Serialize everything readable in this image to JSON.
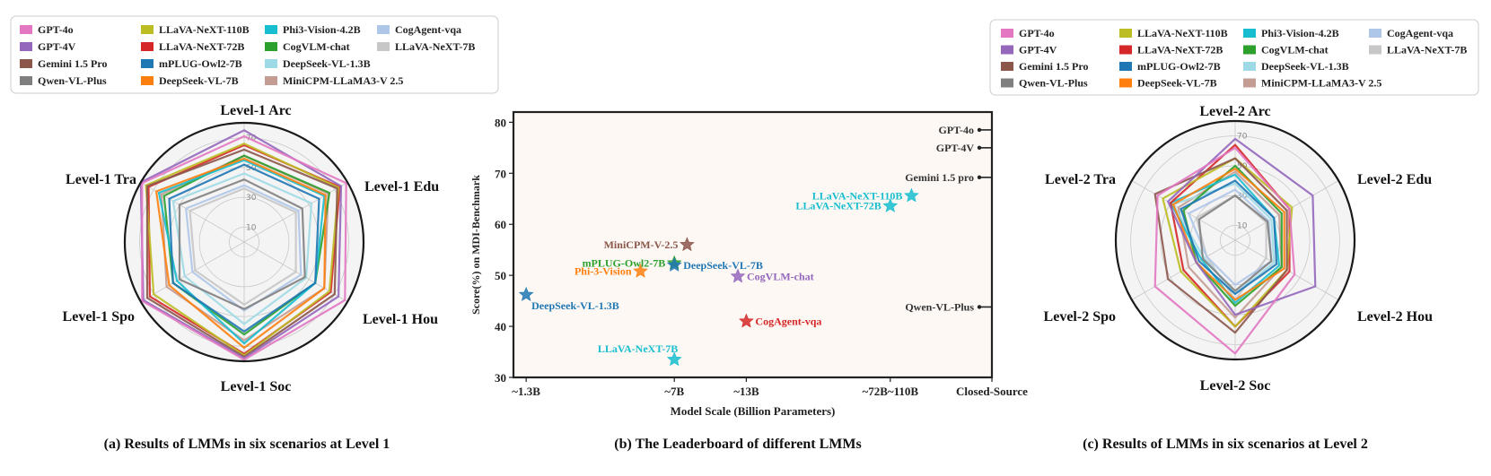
{
  "colors": {
    "GPT-4o": "#e377c2",
    "GPT-4V": "#9467bd",
    "Gemini 1.5 Pro": "#8c564b",
    "Qwen-VL-Plus": "#7f7f7f",
    "LLaVA-NeXT-110B": "#bcbd22",
    "LLaVA-NeXT-72B": "#d62728",
    "mPLUG-Owl2-7B": "#1f77b4",
    "DeepSeek-VL-7B": "#ff7f0e",
    "Phi3-Vision-4.2B": "#17becf",
    "CogVLM-chat": "#2ca02c",
    "DeepSeek-VL-1.3B": "#9edae5",
    "MiniCPM-LLaMA3-V 2.5": "#c49c94",
    "CogAgent-vqa": "#aec7e8",
    "LLaVA-NeXT-7B": "#c7c7c7"
  },
  "legend_left": {
    "columns": [
      [
        "GPT-4o",
        "GPT-4V",
        "Gemini 1.5 Pro",
        "Qwen-VL-Plus"
      ],
      [
        "LLaVA-NeXT-110B",
        "LLaVA-NeXT-72B",
        "mPLUG-Owl2-7B",
        "DeepSeek-VL-7B"
      ],
      [
        "Phi3-Vision-4.2B",
        "CogVLM-chat",
        "DeepSeek-VL-1.3B",
        "MiniCPM-LLaMA3-V 2.5"
      ],
      [
        "CogAgent-vqa",
        "LLaVA-NeXT-7B"
      ]
    ]
  },
  "legend_right": {
    "columns": [
      [
        "GPT-4o",
        "GPT-4V",
        "Gemini 1.5 Pro",
        "Qwen-VL-Plus"
      ],
      [
        "LLaVA-NeXT-110B",
        "LLaVA-NeXT-72B",
        "mPLUG-Owl2-7B",
        "DeepSeek-VL-7B"
      ],
      [
        "Phi3-Vision-4.2B",
        "CogVLM-chat",
        "DeepSeek-VL-1.3B",
        "MiniCPM-LLaMA3-V 2.5"
      ],
      [
        "CogAgent-vqa",
        "LLaVA-NeXT-7B"
      ]
    ]
  },
  "captions": {
    "a": "(a) Results of LMMs in six scenarios at Level 1",
    "b": "(b) The Leaderboard of different LMMs",
    "c": "(c) Results of LMMs in six scenarios at Level 2"
  },
  "chart_data": [
    {
      "type": "radar",
      "id": "level1",
      "axes": [
        "Level-1 Arc",
        "Level-1 Edu",
        "Level-1 Hou",
        "Level-1 Soc",
        "Level-1 Spo",
        "Level-1 Tra"
      ],
      "rmax": 80,
      "tick_labels": [
        "10",
        "30",
        "50",
        "70"
      ],
      "series": [
        {
          "name": "GPT-4o",
          "values": [
            71,
            79,
            78,
            79,
            79,
            79
          ]
        },
        {
          "name": "GPT-4V",
          "values": [
            75,
            75,
            73,
            78,
            78,
            80
          ]
        },
        {
          "name": "Gemini 1.5 Pro",
          "values": [
            62,
            72,
            70,
            77,
            75,
            75
          ]
        },
        {
          "name": "Qwen-VL-Plus",
          "values": [
            42,
            45,
            47,
            45,
            50,
            50
          ]
        },
        {
          "name": "LLaVA-NeXT-110B",
          "values": [
            66,
            73,
            66,
            76,
            70,
            76
          ]
        },
        {
          "name": "LLaVA-NeXT-72B",
          "values": [
            65,
            74,
            67,
            75,
            73,
            74
          ]
        },
        {
          "name": "mPLUG-Owl2-7B",
          "values": [
            52,
            58,
            55,
            60,
            55,
            58
          ]
        },
        {
          "name": "DeepSeek-VL-7B",
          "values": [
            56,
            63,
            62,
            71,
            58,
            68
          ]
        },
        {
          "name": "Phi3-Vision-4.2B",
          "values": [
            55,
            62,
            55,
            68,
            52,
            66
          ]
        },
        {
          "name": "CogVLM-chat",
          "values": [
            58,
            66,
            55,
            62,
            55,
            62
          ]
        },
        {
          "name": "DeepSeek-VL-1.3B",
          "values": [
            46,
            52,
            48,
            55,
            46,
            55
          ]
        },
        {
          "name": "MiniCPM-LLaMA3-V 2.5",
          "values": [
            58,
            65,
            62,
            66,
            60,
            64
          ]
        },
        {
          "name": "CogAgent-vqa",
          "values": [
            38,
            42,
            44,
            46,
            40,
            45
          ]
        },
        {
          "name": "LLaVA-NeXT-7B",
          "values": [
            36,
            40,
            40,
            42,
            38,
            42
          ]
        }
      ]
    },
    {
      "type": "scatter",
      "id": "leaderboard",
      "xlabel": "Model Scale (Billion Parameters)",
      "ylabel": "Score(%) on MDI-Benchmark",
      "ylim": [
        30,
        82
      ],
      "yticks": [
        30,
        40,
        50,
        60,
        70,
        80
      ],
      "xticks": [
        {
          "label": "~1.3B",
          "x": 0
        },
        {
          "label": "~7B",
          "x": 3.5
        },
        {
          "label": "~13B",
          "x": 5.2
        },
        {
          "label": "~72B~110B",
          "x": 8.6
        },
        {
          "label": "Closed-Source",
          "x": 11.0
        }
      ],
      "xlim": [
        -0.3,
        11.0
      ],
      "points": [
        {
          "name": "DeepSeek-VL-1.3B",
          "x": 0.0,
          "y": 46.2,
          "color": "#1f77b4",
          "label_pos": "below-right"
        },
        {
          "name": "Phi-3-Vision",
          "x": 2.7,
          "y": 50.8,
          "color": "#ff7f0e",
          "label_pos": "left"
        },
        {
          "name": "mPLUG-Owl2-7B",
          "x": 3.5,
          "y": 52.4,
          "color": "#2ca02c",
          "label_pos": "left"
        },
        {
          "name": "DeepSeek-VL-7B",
          "x": 3.5,
          "y": 52.0,
          "color": "#1f77b4",
          "label_pos": "right"
        },
        {
          "name": "MiniCPM-V-2.5",
          "x": 3.8,
          "y": 56.0,
          "color": "#8c564b",
          "label_pos": "left"
        },
        {
          "name": "LLaVA-NeXT-7B",
          "x": 3.5,
          "y": 33.5,
          "color": "#17becf",
          "label_pos": "above-left"
        },
        {
          "name": "CogVLM-chat",
          "x": 5.0,
          "y": 49.8,
          "color": "#9467bd",
          "label_pos": "right"
        },
        {
          "name": "CogAgent-vqa",
          "x": 5.2,
          "y": 41.0,
          "color": "#d62728",
          "label_pos": "right"
        },
        {
          "name": "LLaVA-NeXT-72B",
          "x": 8.6,
          "y": 63.6,
          "color": "#17becf",
          "label_pos": "left"
        },
        {
          "name": "LLaVA-NeXT-110B",
          "x": 9.1,
          "y": 65.6,
          "color": "#17becf",
          "label_pos": "left"
        }
      ],
      "closed_source": [
        {
          "name": "GPT-4o",
          "y": 78.5
        },
        {
          "name": "GPT-4V",
          "y": 75.0
        },
        {
          "name": "Gemini 1.5 pro",
          "y": 69.2
        },
        {
          "name": "Qwen-VL-Plus",
          "y": 43.8
        }
      ]
    },
    {
      "type": "radar",
      "id": "level2",
      "axes": [
        "Level-2 Arc",
        "Level-2 Edu",
        "Level-2 Hou",
        "Level-2 Soc",
        "Level-2 Spo",
        "Level-2 Tra"
      ],
      "rmax": 80,
      "tick_labels": [
        "10",
        "30",
        "50",
        "70"
      ],
      "series": [
        {
          "name": "GPT-4o",
          "values": [
            62,
            42,
            46,
            76,
            62,
            60
          ]
        },
        {
          "name": "GPT-4V",
          "values": [
            68,
            60,
            62,
            50,
            30,
            52
          ]
        },
        {
          "name": "Gemini 1.5 Pro",
          "values": [
            55,
            40,
            40,
            62,
            52,
            62
          ]
        },
        {
          "name": "Qwen-VL-Plus",
          "values": [
            30,
            25,
            28,
            34,
            25,
            28
          ]
        },
        {
          "name": "LLaVA-NeXT-110B",
          "values": [
            55,
            44,
            40,
            58,
            42,
            56
          ]
        },
        {
          "name": "LLaVA-NeXT-72B",
          "values": [
            64,
            42,
            42,
            58,
            40,
            50
          ]
        },
        {
          "name": "mPLUG-Owl2-7B",
          "values": [
            40,
            30,
            32,
            36,
            28,
            42
          ]
        },
        {
          "name": "DeepSeek-VL-7B",
          "values": [
            48,
            38,
            38,
            40,
            30,
            48
          ]
        },
        {
          "name": "Phi3-Vision-4.2B",
          "values": [
            44,
            30,
            34,
            42,
            26,
            50
          ]
        },
        {
          "name": "CogVLM-chat",
          "values": [
            50,
            36,
            36,
            44,
            30,
            40
          ]
        },
        {
          "name": "DeepSeek-VL-1.3B",
          "values": [
            38,
            28,
            30,
            36,
            24,
            48
          ]
        },
        {
          "name": "MiniCPM-LLaMA3-V 2.5",
          "values": [
            46,
            34,
            36,
            52,
            36,
            44
          ]
        },
        {
          "name": "CogAgent-vqa",
          "values": [
            34,
            26,
            28,
            30,
            22,
            36
          ]
        },
        {
          "name": "LLaVA-NeXT-7B",
          "values": [
            30,
            24,
            24,
            40,
            22,
            30
          ]
        }
      ]
    }
  ]
}
